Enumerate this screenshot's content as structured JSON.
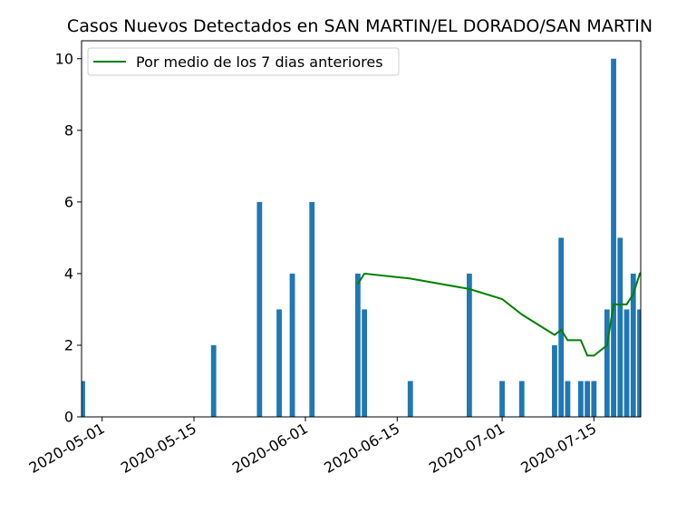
{
  "chart_data": {
    "type": "bar",
    "title": "Casos Nuevos Detectados en SAN MARTIN/EL DORADO/SAN MARTIN",
    "xlabel": "",
    "ylabel": "",
    "x_range": [
      "2020-04-28",
      "2020-07-22"
    ],
    "ylim": [
      0,
      10.5
    ],
    "x_ticks": [
      "2020-05-01",
      "2020-05-15",
      "2020-06-01",
      "2020-06-15",
      "2020-07-01",
      "2020-07-15"
    ],
    "y_ticks": [
      0,
      2,
      4,
      6,
      8,
      10
    ],
    "grid": false,
    "legend_position": "top-left",
    "bar_color": "#1f77b4",
    "line_color": "#008000",
    "bars": [
      {
        "date": "2020-04-28",
        "value": 1
      },
      {
        "date": "2020-05-18",
        "value": 2
      },
      {
        "date": "2020-05-25",
        "value": 6
      },
      {
        "date": "2020-05-28",
        "value": 3
      },
      {
        "date": "2020-05-30",
        "value": 4
      },
      {
        "date": "2020-06-02",
        "value": 6
      },
      {
        "date": "2020-06-09",
        "value": 4
      },
      {
        "date": "2020-06-10",
        "value": 3
      },
      {
        "date": "2020-06-17",
        "value": 1
      },
      {
        "date": "2020-06-26",
        "value": 4
      },
      {
        "date": "2020-07-01",
        "value": 1
      },
      {
        "date": "2020-07-04",
        "value": 1
      },
      {
        "date": "2020-07-09",
        "value": 2
      },
      {
        "date": "2020-07-10",
        "value": 5
      },
      {
        "date": "2020-07-11",
        "value": 1
      },
      {
        "date": "2020-07-13",
        "value": 1
      },
      {
        "date": "2020-07-14",
        "value": 1
      },
      {
        "date": "2020-07-15",
        "value": 1
      },
      {
        "date": "2020-07-17",
        "value": 3
      },
      {
        "date": "2020-07-18",
        "value": 10
      },
      {
        "date": "2020-07-19",
        "value": 5
      },
      {
        "date": "2020-07-20",
        "value": 3
      },
      {
        "date": "2020-07-21",
        "value": 4
      },
      {
        "date": "2020-07-22",
        "value": 3
      }
    ],
    "series": [
      {
        "name": "Por medio de los 7 dias anteriores",
        "type": "line",
        "points": [
          {
            "date": "2020-06-09",
            "value": 3.71
          },
          {
            "date": "2020-06-10",
            "value": 4.0
          },
          {
            "date": "2020-06-17",
            "value": 3.86
          },
          {
            "date": "2020-06-26",
            "value": 3.57
          },
          {
            "date": "2020-07-01",
            "value": 3.29
          },
          {
            "date": "2020-07-04",
            "value": 2.86
          },
          {
            "date": "2020-07-09",
            "value": 2.29
          },
          {
            "date": "2020-07-10",
            "value": 2.43
          },
          {
            "date": "2020-07-11",
            "value": 2.14
          },
          {
            "date": "2020-07-13",
            "value": 2.14
          },
          {
            "date": "2020-07-14",
            "value": 1.71
          },
          {
            "date": "2020-07-15",
            "value": 1.71
          },
          {
            "date": "2020-07-17",
            "value": 2.0
          },
          {
            "date": "2020-07-18",
            "value": 3.14
          },
          {
            "date": "2020-07-19",
            "value": 3.14
          },
          {
            "date": "2020-07-20",
            "value": 3.14
          },
          {
            "date": "2020-07-21",
            "value": 3.43
          },
          {
            "date": "2020-07-22",
            "value": 4.0
          },
          {
            "date": "2020-07-23",
            "value": 4.14
          }
        ]
      }
    ]
  }
}
